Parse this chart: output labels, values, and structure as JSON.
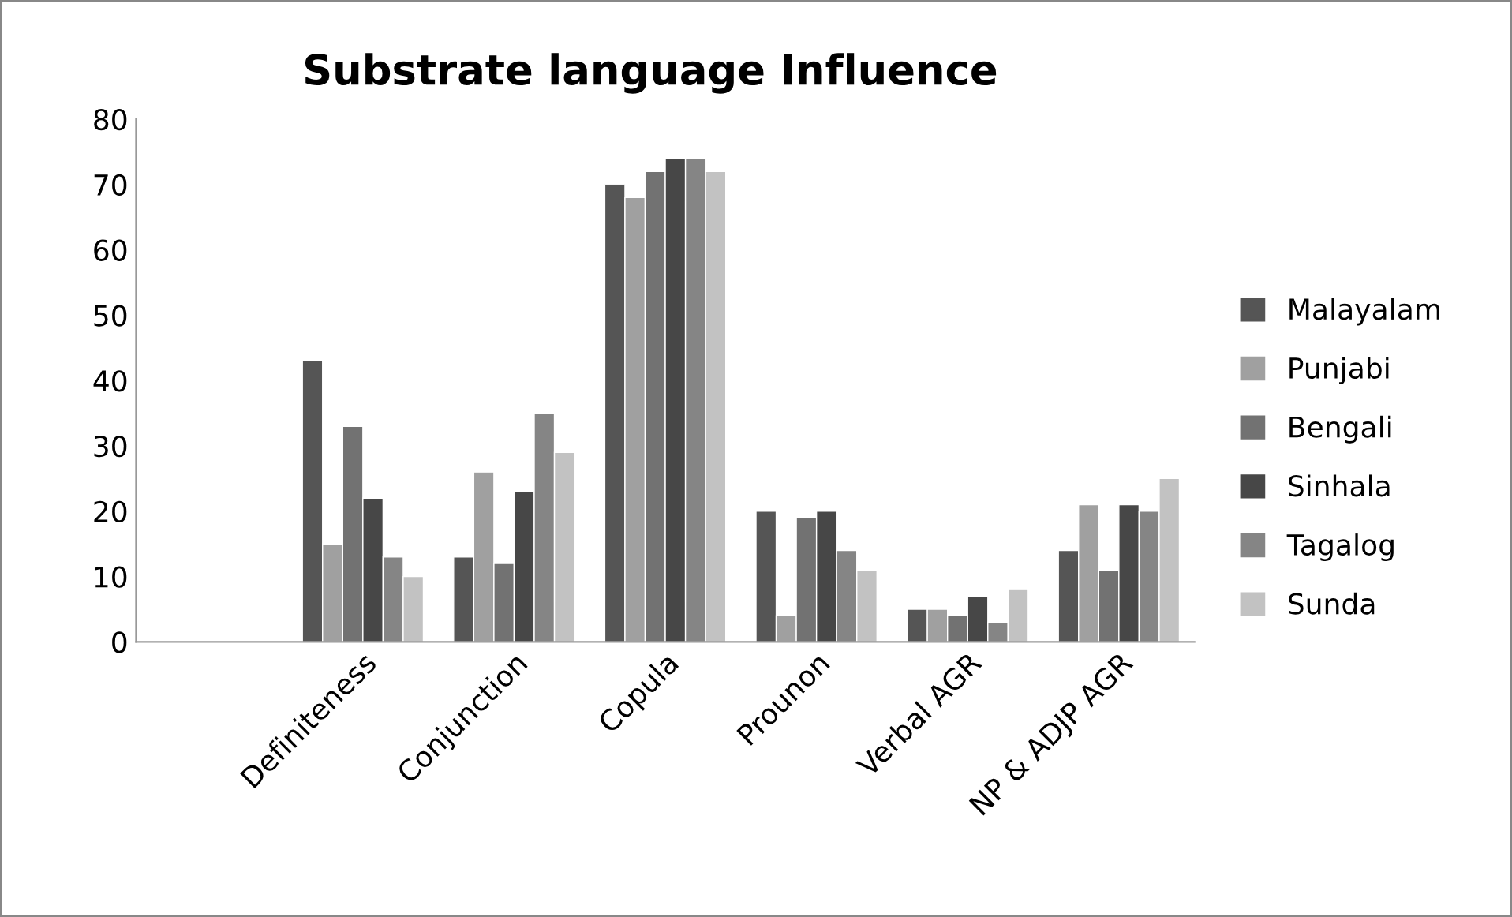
{
  "chart_data": {
    "type": "bar",
    "title": "Substrate language Influence",
    "categories": [
      null,
      "Definiteness",
      "Conjunction",
      "Copula",
      "Prounon",
      "Verbal AGR",
      "NP & ADJP AGR"
    ],
    "series": [
      {
        "name": "Malayalam",
        "color": "#555555",
        "values": [
          null,
          43,
          13,
          70,
          20,
          5,
          14
        ]
      },
      {
        "name": "Punjabi",
        "color": "#a0a0a0",
        "values": [
          null,
          15,
          26,
          68,
          4,
          5,
          21
        ]
      },
      {
        "name": "Bengali",
        "color": "#727272",
        "values": [
          null,
          33,
          12,
          72,
          19,
          4,
          11
        ]
      },
      {
        "name": "Sinhala",
        "color": "#474747",
        "values": [
          null,
          22,
          23,
          74,
          20,
          7,
          21
        ]
      },
      {
        "name": "Tagalog",
        "color": "#858585",
        "values": [
          null,
          13,
          35,
          74,
          14,
          3,
          20
        ]
      },
      {
        "name": "Sunda",
        "color": "#c2c2c2",
        "values": [
          null,
          10,
          29,
          72,
          11,
          8,
          25
        ]
      }
    ],
    "ylim": [
      0,
      80
    ],
    "yticks": [
      0,
      10,
      20,
      30,
      40,
      50,
      60,
      70,
      80
    ],
    "grid": false,
    "legend": "right"
  }
}
